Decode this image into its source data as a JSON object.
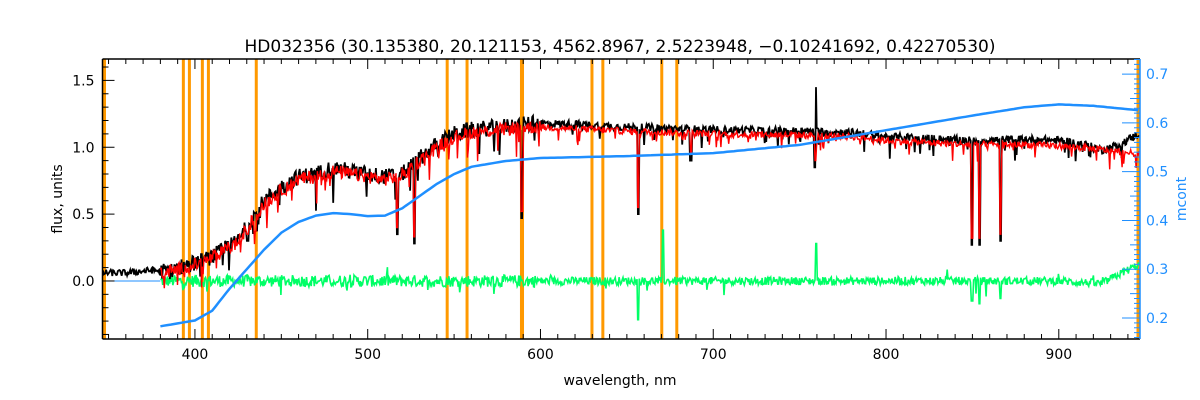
{
  "chart_data": {
    "type": "line",
    "title": "HD032356    (30.135380, 20.121153, 4562.8967, 2.5223948, −0.10241692, 0.42270530)",
    "xlabel": "wavelength, nm",
    "ylabel": "flux, units",
    "y2label": "mcont",
    "xlim": [
      346.5,
      947
    ],
    "ylim": [
      -0.434,
      1.66
    ],
    "y2lim": [
      0.157,
      0.731
    ],
    "x_ticks": [
      400,
      500,
      600,
      700,
      800,
      900
    ],
    "x_tick_labels": [
      "400",
      "500",
      "600",
      "700",
      "800",
      "900"
    ],
    "y_ticks": [
      0.0,
      0.5,
      1.0,
      1.5
    ],
    "y_tick_labels": [
      "0.0",
      "0.5",
      "1.0",
      "1.5"
    ],
    "y2_ticks": [
      0.2,
      0.3,
      0.4,
      0.5,
      0.6,
      0.7
    ],
    "y2_tick_labels": [
      "0.2",
      "0.3",
      "0.4",
      "0.5",
      "0.6",
      "0.7"
    ],
    "grid": false,
    "colors": {
      "observed": "#000000",
      "model": "#ff0000",
      "residual": "#00ff66",
      "continuum": "#1f8fff",
      "lines": "#ff9900",
      "axis2": "#1f8fff"
    },
    "series": [
      {
        "name": "observed flux",
        "axis": "left",
        "x": [
          347,
          360,
          375,
          385,
          395,
          405,
          415,
          425,
          432,
          440,
          450,
          460,
          470,
          480,
          490,
          500,
          510,
          520,
          530,
          540,
          550,
          560,
          575,
          590,
          600,
          620,
          650,
          700,
          750,
          780,
          800,
          850,
          880,
          900,
          915,
          925,
          935,
          946
        ],
        "y": [
          0.06,
          0.06,
          0.08,
          0.07,
          0.12,
          0.15,
          0.22,
          0.3,
          0.45,
          0.6,
          0.7,
          0.78,
          0.8,
          0.85,
          0.82,
          0.8,
          0.78,
          0.8,
          0.92,
          1.02,
          1.1,
          1.13,
          1.15,
          1.17,
          1.18,
          1.17,
          1.15,
          1.13,
          1.12,
          1.11,
          1.08,
          1.05,
          1.06,
          1.05,
          1.02,
          0.98,
          1.02,
          1.1
        ]
      },
      {
        "name": "model flux",
        "axis": "left",
        "x": [
          380,
          395,
          405,
          415,
          425,
          432,
          440,
          450,
          460,
          470,
          480,
          490,
          500,
          510,
          520,
          530,
          540,
          550,
          560,
          575,
          590,
          600,
          620,
          650,
          700,
          750,
          780,
          800,
          850,
          880,
          900,
          920,
          946
        ],
        "y": [
          0.06,
          0.1,
          0.14,
          0.21,
          0.29,
          0.43,
          0.57,
          0.68,
          0.76,
          0.78,
          0.82,
          0.8,
          0.78,
          0.76,
          0.79,
          0.9,
          1.0,
          1.08,
          1.11,
          1.13,
          1.15,
          1.15,
          1.14,
          1.12,
          1.1,
          1.09,
          1.08,
          1.05,
          1.02,
          1.02,
          1.01,
          0.99,
          0.95
        ]
      },
      {
        "name": "residual",
        "axis": "left",
        "x": [
          380,
          500,
          600,
          700,
          800,
          900,
          925,
          935,
          946
        ],
        "y": [
          0.0,
          0.0,
          0.0,
          0.0,
          0.0,
          0.0,
          -0.02,
          0.05,
          0.12
        ]
      },
      {
        "name": "mcont",
        "axis": "right",
        "x": [
          380,
          400,
          410,
          420,
          430,
          440,
          450,
          460,
          470,
          480,
          490,
          500,
          510,
          520,
          530,
          540,
          550,
          560,
          580,
          600,
          650,
          700,
          750,
          800,
          850,
          880,
          900,
          920,
          946
        ],
        "y": [
          0.183,
          0.195,
          0.215,
          0.26,
          0.3,
          0.34,
          0.375,
          0.397,
          0.41,
          0.415,
          0.413,
          0.409,
          0.41,
          0.425,
          0.45,
          0.475,
          0.495,
          0.51,
          0.522,
          0.528,
          0.532,
          0.538,
          0.555,
          0.585,
          0.615,
          0.632,
          0.638,
          0.635,
          0.626
        ]
      },
      {
        "name": "zero level",
        "axis": "left",
        "x": [
          347,
          380
        ],
        "y": [
          0.0,
          0.0
        ]
      }
    ],
    "absorption_features": [
      {
        "nm": 430.5,
        "observed": 0.3
      },
      {
        "nm": 517.0,
        "observed": 0.35
      },
      {
        "nm": 527.0,
        "observed": 0.28
      },
      {
        "nm": 589.3,
        "observed": 0.47
      },
      {
        "nm": 656.5,
        "observed": 0.5
      },
      {
        "nm": 687.0,
        "observed": 0.9
      },
      {
        "nm": 759.0,
        "observed": 0.85
      },
      {
        "nm": 849.8,
        "observed": 0.27
      },
      {
        "nm": 854.2,
        "observed": 0.27
      },
      {
        "nm": 866.2,
        "observed": 0.3
      }
    ],
    "emission_features": [
      {
        "nm": 759.5,
        "observed": 1.45
      }
    ],
    "residual_spikes": [
      {
        "nm": 656.5,
        "value": -0.29
      },
      {
        "nm": 670.8,
        "value": 0.38
      },
      {
        "nm": 759.5,
        "value": 0.28
      },
      {
        "nm": 849.8,
        "value": -0.15
      },
      {
        "nm": 854.2,
        "value": -0.17
      },
      {
        "nm": 866.2,
        "value": -0.13
      }
    ],
    "vertical_lines_nm": [
      347,
      393.3,
      396.8,
      404.3,
      407.8,
      435.5,
      546.0,
      557.5,
      589.0,
      589.6,
      629.8,
      636.1,
      670.2,
      678.9,
      946.5
    ]
  }
}
